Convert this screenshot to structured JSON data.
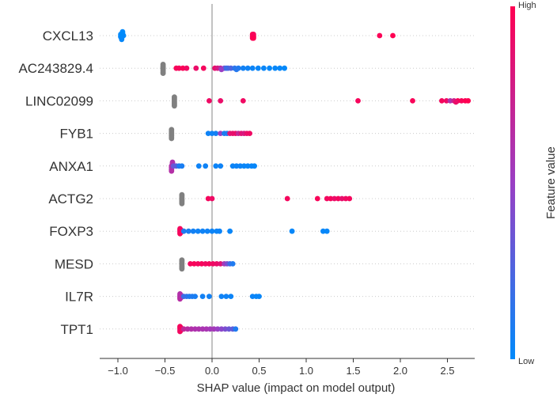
{
  "chart_data": {
    "type": "scatter",
    "subtype": "shap-beeswarm",
    "title": "",
    "xlabel": "SHAP value (impact on model output)",
    "ylabel": "",
    "xlim": [
      -1.2,
      2.8
    ],
    "xticks": [
      -1.0,
      -0.5,
      0.0,
      0.5,
      1.0,
      1.5,
      2.0,
      2.5
    ],
    "xtick_labels": [
      "−1.0",
      "−0.5",
      "0.0",
      "0.5",
      "1.0",
      "1.5",
      "2.0",
      "2.5"
    ],
    "grid": false,
    "zero_line": 0.0,
    "features": [
      {
        "name": "CXCL13",
        "points": [
          {
            "x": -0.97,
            "v": 0.0
          },
          {
            "x": -0.94,
            "v": 0.0
          },
          {
            "x": -0.96,
            "v": 0.0
          },
          {
            "x": -0.95,
            "v": 0.05
          },
          {
            "x": -0.97,
            "v": 0.02
          },
          {
            "x": -0.96,
            "v": 0.0
          },
          {
            "x": -0.95,
            "v": 0.0
          },
          {
            "x": -0.97,
            "v": 0.0
          },
          {
            "x": -0.96,
            "v": 0.02
          },
          {
            "x": -0.95,
            "v": 0.0
          },
          {
            "x": 0.43,
            "v": 0.95
          },
          {
            "x": 0.44,
            "v": 1.0
          },
          {
            "x": 0.43,
            "v": 0.92
          },
          {
            "x": 0.44,
            "v": 0.98
          },
          {
            "x": 0.43,
            "v": 1.0
          },
          {
            "x": 0.44,
            "v": 0.96
          },
          {
            "x": 0.43,
            "v": 0.97
          },
          {
            "x": 0.44,
            "v": 1.0
          },
          {
            "x": 1.78,
            "v": 0.98
          },
          {
            "x": 1.92,
            "v": 1.0
          }
        ]
      },
      {
        "name": "AC243829.4",
        "points": [
          {
            "x": -0.52,
            "v": null
          },
          {
            "x": -0.52,
            "v": null
          },
          {
            "x": -0.52,
            "v": null
          },
          {
            "x": -0.52,
            "v": null
          },
          {
            "x": -0.52,
            "v": null
          },
          {
            "x": -0.52,
            "v": null
          },
          {
            "x": -0.52,
            "v": null
          },
          {
            "x": -0.52,
            "v": null
          },
          {
            "x": -0.38,
            "v": 0.97
          },
          {
            "x": -0.35,
            "v": 0.95
          },
          {
            "x": -0.31,
            "v": 0.98
          },
          {
            "x": -0.27,
            "v": 0.93
          },
          {
            "x": -0.17,
            "v": 0.9
          },
          {
            "x": -0.09,
            "v": 0.95
          },
          {
            "x": 0.03,
            "v": 0.88
          },
          {
            "x": 0.06,
            "v": 0.8
          },
          {
            "x": 0.09,
            "v": 0.7
          },
          {
            "x": 0.13,
            "v": 0.4
          },
          {
            "x": 0.17,
            "v": 0.3
          },
          {
            "x": 0.2,
            "v": 0.25
          },
          {
            "x": 0.24,
            "v": 0.15
          },
          {
            "x": 0.28,
            "v": 0.1
          },
          {
            "x": 0.33,
            "v": 0.06
          },
          {
            "x": 0.38,
            "v": 0.05
          },
          {
            "x": 0.43,
            "v": 0.04
          },
          {
            "x": 0.49,
            "v": 0.03
          },
          {
            "x": 0.55,
            "v": 0.03
          },
          {
            "x": 0.61,
            "v": 0.02
          },
          {
            "x": 0.67,
            "v": 0.02
          },
          {
            "x": 0.72,
            "v": 0.02
          },
          {
            "x": 0.77,
            "v": 0.01
          },
          {
            "x": 0.1,
            "v": 0.5
          },
          {
            "x": 0.15,
            "v": 0.2
          },
          {
            "x": 0.26,
            "v": 0.12
          }
        ]
      },
      {
        "name": "LINC02099",
        "points": [
          {
            "x": -0.4,
            "v": null
          },
          {
            "x": -0.4,
            "v": null
          },
          {
            "x": -0.4,
            "v": null
          },
          {
            "x": -0.4,
            "v": null
          },
          {
            "x": -0.4,
            "v": null
          },
          {
            "x": -0.4,
            "v": null
          },
          {
            "x": -0.4,
            "v": null
          },
          {
            "x": -0.4,
            "v": null
          },
          {
            "x": -0.03,
            "v": 0.92
          },
          {
            "x": 0.09,
            "v": 0.9
          },
          {
            "x": 0.33,
            "v": 0.93
          },
          {
            "x": 1.55,
            "v": 0.96
          },
          {
            "x": 2.13,
            "v": 0.97
          },
          {
            "x": 2.44,
            "v": 0.95
          },
          {
            "x": 2.49,
            "v": 0.92
          },
          {
            "x": 2.53,
            "v": 0.6
          },
          {
            "x": 2.57,
            "v": 0.75
          },
          {
            "x": 2.61,
            "v": 0.98
          },
          {
            "x": 2.65,
            "v": 0.96
          },
          {
            "x": 2.69,
            "v": 0.99
          },
          {
            "x": 2.72,
            "v": 1.0
          },
          {
            "x": 2.59,
            "v": 0.9
          }
        ]
      },
      {
        "name": "FYB1",
        "points": [
          {
            "x": -0.43,
            "v": null
          },
          {
            "x": -0.43,
            "v": null
          },
          {
            "x": -0.43,
            "v": null
          },
          {
            "x": -0.43,
            "v": null
          },
          {
            "x": -0.43,
            "v": null
          },
          {
            "x": -0.43,
            "v": null
          },
          {
            "x": -0.43,
            "v": null
          },
          {
            "x": -0.43,
            "v": null
          },
          {
            "x": -0.04,
            "v": 0.05
          },
          {
            "x": 0.0,
            "v": 0.05
          },
          {
            "x": 0.04,
            "v": 0.06
          },
          {
            "x": 0.09,
            "v": 0.5
          },
          {
            "x": 0.13,
            "v": 0.08
          },
          {
            "x": 0.16,
            "v": 0.1
          },
          {
            "x": 0.19,
            "v": 0.85
          },
          {
            "x": 0.22,
            "v": 0.88
          },
          {
            "x": 0.25,
            "v": 0.9
          },
          {
            "x": 0.28,
            "v": 0.7
          },
          {
            "x": 0.31,
            "v": 0.85
          },
          {
            "x": 0.34,
            "v": 0.8
          },
          {
            "x": 0.37,
            "v": 0.9
          },
          {
            "x": 0.4,
            "v": 0.92
          }
        ]
      },
      {
        "name": "ANXA1",
        "points": [
          {
            "x": -0.43,
            "v": 0.6
          },
          {
            "x": -0.43,
            "v": 0.65
          },
          {
            "x": -0.42,
            "v": 0.55
          },
          {
            "x": -0.43,
            "v": 0.6
          },
          {
            "x": -0.42,
            "v": 0.62
          },
          {
            "x": -0.43,
            "v": 0.58
          },
          {
            "x": -0.42,
            "v": 0.6
          },
          {
            "x": -0.43,
            "v": 0.63
          },
          {
            "x": -0.41,
            "v": 0.35
          },
          {
            "x": -0.38,
            "v": 0.3
          },
          {
            "x": -0.35,
            "v": 0.1
          },
          {
            "x": -0.32,
            "v": 0.08
          },
          {
            "x": -0.14,
            "v": 0.05
          },
          {
            "x": -0.07,
            "v": 0.05
          },
          {
            "x": 0.04,
            "v": 0.04
          },
          {
            "x": 0.09,
            "v": 0.05
          },
          {
            "x": 0.22,
            "v": 0.04
          },
          {
            "x": 0.26,
            "v": 0.04
          },
          {
            "x": 0.3,
            "v": 0.04
          },
          {
            "x": 0.34,
            "v": 0.03
          },
          {
            "x": 0.38,
            "v": 0.03
          },
          {
            "x": 0.42,
            "v": 0.03
          },
          {
            "x": 0.45,
            "v": 0.02
          }
        ]
      },
      {
        "name": "ACTG2",
        "points": [
          {
            "x": -0.32,
            "v": null
          },
          {
            "x": -0.32,
            "v": null
          },
          {
            "x": -0.32,
            "v": null
          },
          {
            "x": -0.32,
            "v": null
          },
          {
            "x": -0.32,
            "v": null
          },
          {
            "x": -0.32,
            "v": null
          },
          {
            "x": -0.32,
            "v": null
          },
          {
            "x": -0.32,
            "v": null
          },
          {
            "x": -0.04,
            "v": 0.95
          },
          {
            "x": 0.0,
            "v": 0.92
          },
          {
            "x": 0.8,
            "v": 0.95
          },
          {
            "x": 1.12,
            "v": 0.97
          },
          {
            "x": 1.22,
            "v": 0.94
          },
          {
            "x": 1.26,
            "v": 0.96
          },
          {
            "x": 1.3,
            "v": 0.9
          },
          {
            "x": 1.34,
            "v": 0.95
          },
          {
            "x": 1.38,
            "v": 0.88
          },
          {
            "x": 1.42,
            "v": 0.93
          },
          {
            "x": 1.46,
            "v": 0.95
          }
        ]
      },
      {
        "name": "FOXP3",
        "points": [
          {
            "x": -0.34,
            "v": 0.95
          },
          {
            "x": -0.34,
            "v": 0.92
          },
          {
            "x": -0.33,
            "v": 0.97
          },
          {
            "x": -0.34,
            "v": 0.94
          },
          {
            "x": -0.33,
            "v": 0.9
          },
          {
            "x": -0.34,
            "v": 0.96
          },
          {
            "x": -0.33,
            "v": 0.93
          },
          {
            "x": -0.34,
            "v": 0.95
          },
          {
            "x": -0.3,
            "v": 0.1
          },
          {
            "x": -0.25,
            "v": 0.08
          },
          {
            "x": -0.2,
            "v": 0.06
          },
          {
            "x": -0.15,
            "v": 0.05
          },
          {
            "x": -0.1,
            "v": 0.05
          },
          {
            "x": -0.05,
            "v": 0.05
          },
          {
            "x": 0.0,
            "v": 0.04
          },
          {
            "x": 0.05,
            "v": 0.04
          },
          {
            "x": 0.08,
            "v": 0.04
          },
          {
            "x": 0.19,
            "v": 0.03
          },
          {
            "x": 0.85,
            "v": 0.02
          },
          {
            "x": 1.18,
            "v": 0.02
          },
          {
            "x": 1.22,
            "v": 0.02
          }
        ]
      },
      {
        "name": "MESD",
        "points": [
          {
            "x": -0.32,
            "v": null
          },
          {
            "x": -0.32,
            "v": null
          },
          {
            "x": -0.32,
            "v": null
          },
          {
            "x": -0.32,
            "v": null
          },
          {
            "x": -0.32,
            "v": null
          },
          {
            "x": -0.32,
            "v": null
          },
          {
            "x": -0.32,
            "v": null
          },
          {
            "x": -0.32,
            "v": null
          },
          {
            "x": -0.23,
            "v": 0.95
          },
          {
            "x": -0.19,
            "v": 0.97
          },
          {
            "x": -0.15,
            "v": 0.94
          },
          {
            "x": -0.11,
            "v": 0.96
          },
          {
            "x": -0.07,
            "v": 0.93
          },
          {
            "x": -0.03,
            "v": 0.95
          },
          {
            "x": 0.01,
            "v": 0.92
          },
          {
            "x": 0.05,
            "v": 0.9
          },
          {
            "x": 0.09,
            "v": 0.85
          },
          {
            "x": 0.13,
            "v": 0.55
          },
          {
            "x": 0.16,
            "v": 0.4
          },
          {
            "x": 0.19,
            "v": 0.2
          },
          {
            "x": 0.22,
            "v": 0.1
          }
        ]
      },
      {
        "name": "IL7R",
        "points": [
          {
            "x": -0.34,
            "v": 0.6
          },
          {
            "x": -0.34,
            "v": 0.65
          },
          {
            "x": -0.33,
            "v": 0.58
          },
          {
            "x": -0.34,
            "v": 0.62
          },
          {
            "x": -0.33,
            "v": 0.6
          },
          {
            "x": -0.34,
            "v": 0.64
          },
          {
            "x": -0.33,
            "v": 0.6
          },
          {
            "x": -0.34,
            "v": 0.62
          },
          {
            "x": -0.3,
            "v": 0.2
          },
          {
            "x": -0.27,
            "v": 0.15
          },
          {
            "x": -0.24,
            "v": 0.1
          },
          {
            "x": -0.21,
            "v": 0.1
          },
          {
            "x": -0.18,
            "v": 0.08
          },
          {
            "x": -0.1,
            "v": 0.06
          },
          {
            "x": -0.03,
            "v": 0.06
          },
          {
            "x": 0.1,
            "v": 0.05
          },
          {
            "x": 0.15,
            "v": 0.05
          },
          {
            "x": 0.2,
            "v": 0.04
          },
          {
            "x": 0.43,
            "v": 0.04
          },
          {
            "x": 0.47,
            "v": 0.03
          },
          {
            "x": 0.5,
            "v": 0.03
          }
        ]
      },
      {
        "name": "TPT1",
        "points": [
          {
            "x": -0.34,
            "v": 0.95
          },
          {
            "x": -0.34,
            "v": 0.9
          },
          {
            "x": -0.33,
            "v": 0.93
          },
          {
            "x": -0.34,
            "v": 0.96
          },
          {
            "x": -0.33,
            "v": 0.92
          },
          {
            "x": -0.34,
            "v": 0.94
          },
          {
            "x": -0.33,
            "v": 0.9
          },
          {
            "x": -0.34,
            "v": 0.95
          },
          {
            "x": -0.3,
            "v": 0.7
          },
          {
            "x": -0.26,
            "v": 0.65
          },
          {
            "x": -0.22,
            "v": 0.62
          },
          {
            "x": -0.18,
            "v": 0.6
          },
          {
            "x": -0.14,
            "v": 0.6
          },
          {
            "x": -0.1,
            "v": 0.58
          },
          {
            "x": -0.06,
            "v": 0.58
          },
          {
            "x": -0.02,
            "v": 0.55
          },
          {
            "x": 0.02,
            "v": 0.55
          },
          {
            "x": 0.06,
            "v": 0.5
          },
          {
            "x": 0.1,
            "v": 0.45
          },
          {
            "x": 0.14,
            "v": 0.4
          },
          {
            "x": 0.18,
            "v": 0.35
          },
          {
            "x": 0.22,
            "v": 0.3
          },
          {
            "x": 0.25,
            "v": 0.1
          }
        ]
      }
    ],
    "colorbar": {
      "label": "Feature value",
      "high_label": "High",
      "low_label": "Low",
      "low_color": "#008afb",
      "high_color": "#ff0052",
      "missing_color": "#808080",
      "placement": "right"
    }
  }
}
